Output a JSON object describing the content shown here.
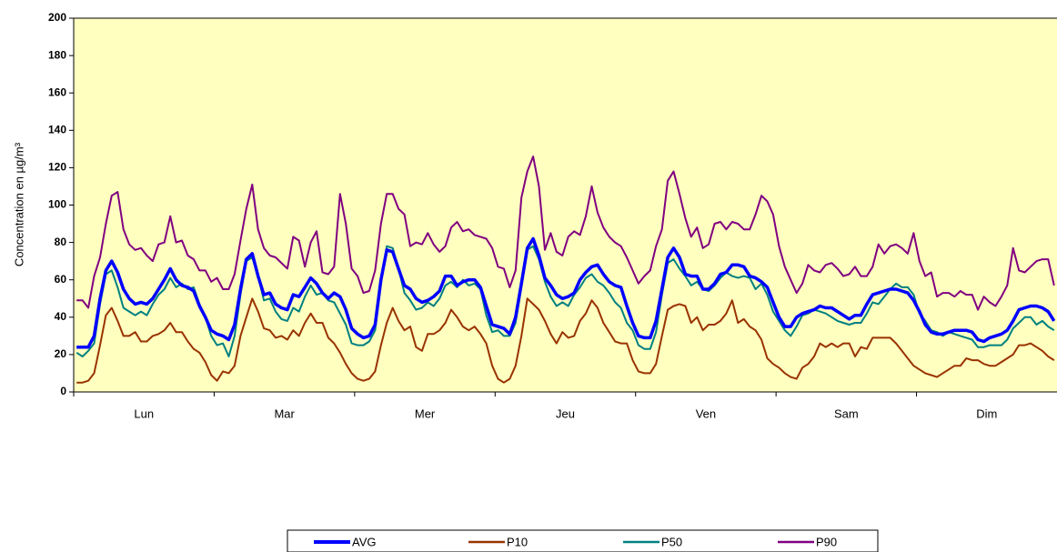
{
  "chart_data": {
    "type": "line",
    "y_label": "Concentration en µg/m³",
    "categories": [
      null,
      null,
      null,
      null,
      null,
      null,
      null,
      null,
      null,
      null,
      null,
      null,
      "Lun",
      null,
      null,
      null,
      null,
      null,
      null,
      null,
      null,
      null,
      null,
      null,
      null,
      null,
      null,
      null,
      null,
      null,
      null,
      null,
      null,
      null,
      null,
      null,
      "Mar",
      null,
      null,
      null,
      null,
      null,
      null,
      null,
      null,
      null,
      null,
      null,
      null,
      null,
      null,
      null,
      null,
      null,
      null,
      null,
      null,
      null,
      null,
      null,
      "Mer",
      null,
      null,
      null,
      null,
      null,
      null,
      null,
      null,
      null,
      null,
      null,
      null,
      null,
      null,
      null,
      null,
      null,
      null,
      null,
      null,
      null,
      null,
      null,
      "Jeu",
      null,
      null,
      null,
      null,
      null,
      null,
      null,
      null,
      null,
      null,
      null,
      null,
      null,
      null,
      null,
      null,
      null,
      null,
      null,
      null,
      null,
      null,
      null,
      "Ven",
      null,
      null,
      null,
      null,
      null,
      null,
      null,
      null,
      null,
      null,
      null,
      null,
      null,
      null,
      null,
      null,
      null,
      null,
      null,
      null,
      null,
      null,
      null,
      "Sam",
      null,
      null,
      null,
      null,
      null,
      null,
      null,
      null,
      null,
      null,
      null,
      null,
      null,
      null,
      null,
      null,
      null,
      null,
      null,
      null,
      null,
      null,
      null,
      "Dim",
      null,
      null,
      null,
      null,
      null,
      null,
      null,
      null,
      null,
      null,
      null
    ],
    "series": [
      {
        "name": "AVG",
        "color": "#0000ff",
        "values": [
          24,
          24,
          24,
          30,
          50,
          65,
          70,
          64,
          55,
          50,
          47,
          48,
          47,
          50,
          55,
          60,
          66,
          60,
          57,
          56,
          54,
          46,
          40,
          33,
          31,
          30,
          28,
          36,
          55,
          71,
          74,
          62,
          52,
          53,
          47,
          45,
          44,
          52,
          51,
          56,
          61,
          58,
          53,
          50,
          53,
          51,
          44,
          34,
          31,
          29,
          30,
          36,
          60,
          76,
          75,
          66,
          57,
          55,
          50,
          48,
          49,
          51,
          54,
          62,
          62,
          57,
          59,
          60,
          60,
          56,
          46,
          36,
          35,
          34,
          31,
          40,
          58,
          77,
          82,
          73,
          61,
          57,
          52,
          50,
          51,
          53,
          60,
          64,
          67,
          68,
          63,
          59,
          57,
          56,
          46,
          37,
          30,
          29,
          29,
          38,
          55,
          72,
          77,
          72,
          63,
          62,
          62,
          55,
          55,
          58,
          63,
          64,
          68,
          68,
          67,
          62,
          61,
          59,
          56,
          48,
          40,
          35,
          35,
          40,
          42,
          43,
          44,
          46,
          45,
          45,
          43,
          41,
          39,
          41,
          41,
          47,
          52,
          53,
          54,
          55,
          55,
          54,
          53,
          49,
          43,
          36,
          32,
          31,
          31,
          32,
          33,
          33,
          33,
          32,
          28,
          27,
          29,
          30,
          31,
          33,
          38,
          44,
          45,
          46,
          46,
          45,
          43,
          38
        ]
      },
      {
        "name": "P10",
        "color": "#993300",
        "values": [
          5,
          5,
          6,
          10,
          25,
          41,
          45,
          38,
          30,
          30,
          32,
          27,
          27,
          30,
          31,
          33,
          37,
          32,
          32,
          27,
          23,
          21,
          16,
          9,
          6,
          11,
          10,
          14,
          30,
          40,
          50,
          43,
          34,
          33,
          29,
          30,
          28,
          33,
          30,
          37,
          42,
          37,
          37,
          29,
          26,
          21,
          15,
          10,
          7,
          6,
          7,
          11,
          25,
          37,
          45,
          38,
          33,
          35,
          24,
          22,
          31,
          31,
          33,
          37,
          44,
          40,
          35,
          33,
          35,
          31,
          26,
          14,
          7,
          5,
          7,
          14,
          30,
          50,
          47,
          44,
          38,
          31,
          26,
          32,
          29,
          30,
          38,
          42,
          49,
          45,
          37,
          32,
          27,
          26,
          26,
          17,
          11,
          10,
          10,
          15,
          30,
          44,
          46,
          47,
          46,
          37,
          40,
          33,
          36,
          36,
          38,
          42,
          49,
          37,
          39,
          35,
          33,
          28,
          18,
          15,
          13,
          10,
          8,
          7,
          13,
          15,
          19,
          26,
          24,
          26,
          24,
          26,
          26,
          19,
          24,
          23,
          29,
          29,
          29,
          29,
          26,
          22,
          18,
          14,
          12,
          10,
          9,
          8,
          10,
          12,
          14,
          14,
          18,
          17,
          17,
          15,
          14,
          14,
          16,
          18,
          20,
          25,
          25,
          26,
          24,
          22,
          19,
          17
        ]
      },
      {
        "name": "P50",
        "color": "#008080",
        "values": [
          21,
          19,
          22,
          26,
          47,
          63,
          65,
          56,
          45,
          43,
          41,
          43,
          41,
          47,
          52,
          55,
          61,
          56,
          58,
          55,
          56,
          47,
          40,
          30,
          25,
          26,
          19,
          30,
          52,
          70,
          72,
          62,
          49,
          50,
          43,
          39,
          38,
          45,
          43,
          51,
          57,
          52,
          53,
          49,
          48,
          42,
          36,
          26,
          25,
          25,
          27,
          33,
          58,
          78,
          77,
          66,
          53,
          49,
          44,
          45,
          48,
          46,
          50,
          57,
          59,
          56,
          60,
          57,
          58,
          55,
          41,
          32,
          33,
          30,
          30,
          37,
          56,
          76,
          78,
          71,
          59,
          51,
          46,
          48,
          46,
          52,
          56,
          61,
          63,
          59,
          57,
          53,
          48,
          45,
          37,
          33,
          25,
          23,
          23,
          32,
          52,
          69,
          71,
          66,
          62,
          57,
          59,
          55,
          54,
          57,
          61,
          64,
          62,
          61,
          62,
          61,
          55,
          58,
          52,
          43,
          38,
          33,
          30,
          35,
          41,
          42,
          44,
          43,
          42,
          40,
          38,
          37,
          36,
          37,
          37,
          42,
          48,
          47,
          51,
          55,
          58,
          56,
          56,
          52,
          42,
          38,
          33,
          32,
          30,
          32,
          31,
          30,
          29,
          28,
          24,
          24,
          25,
          25,
          25,
          28,
          34,
          37,
          40,
          40,
          36,
          38,
          35,
          33
        ]
      },
      {
        "name": "P90",
        "color": "#800080",
        "values": [
          49,
          49,
          45,
          62,
          72,
          90,
          105,
          107,
          87,
          79,
          76,
          77,
          73,
          70,
          79,
          80,
          94,
          80,
          81,
          73,
          71,
          65,
          65,
          59,
          61,
          55,
          55,
          63,
          81,
          98,
          111,
          87,
          77,
          73,
          72,
          69,
          66,
          83,
          81,
          67,
          80,
          86,
          64,
          63,
          67,
          106,
          90,
          66,
          62,
          53,
          54,
          65,
          90,
          106,
          106,
          98,
          95,
          78,
          80,
          79,
          85,
          79,
          75,
          78,
          88,
          91,
          86,
          87,
          84,
          83,
          82,
          77,
          67,
          66,
          56,
          65,
          104,
          118,
          126,
          110,
          76,
          85,
          75,
          73,
          83,
          86,
          84,
          94,
          110,
          96,
          88,
          83,
          80,
          78,
          72,
          65,
          58,
          62,
          65,
          78,
          87,
          113,
          118,
          106,
          93,
          83,
          88,
          77,
          79,
          90,
          91,
          87,
          91,
          90,
          87,
          87,
          95,
          105,
          102,
          95,
          78,
          67,
          60,
          53,
          58,
          68,
          65,
          64,
          68,
          69,
          66,
          62,
          63,
          67,
          62,
          62,
          67,
          79,
          74,
          78,
          79,
          77,
          74,
          85,
          70,
          62,
          64,
          51,
          53,
          53,
          51,
          54,
          52,
          52,
          44,
          51,
          48,
          46,
          51,
          57,
          77,
          65,
          64,
          67,
          70,
          71,
          71,
          57
        ]
      }
    ],
    "ylim": [
      0,
      200
    ],
    "yticks": [
      0,
      20,
      40,
      60,
      80,
      100,
      120,
      140,
      160,
      180,
      200
    ],
    "plot_background": "#ffffc0",
    "legend": "bottom"
  }
}
